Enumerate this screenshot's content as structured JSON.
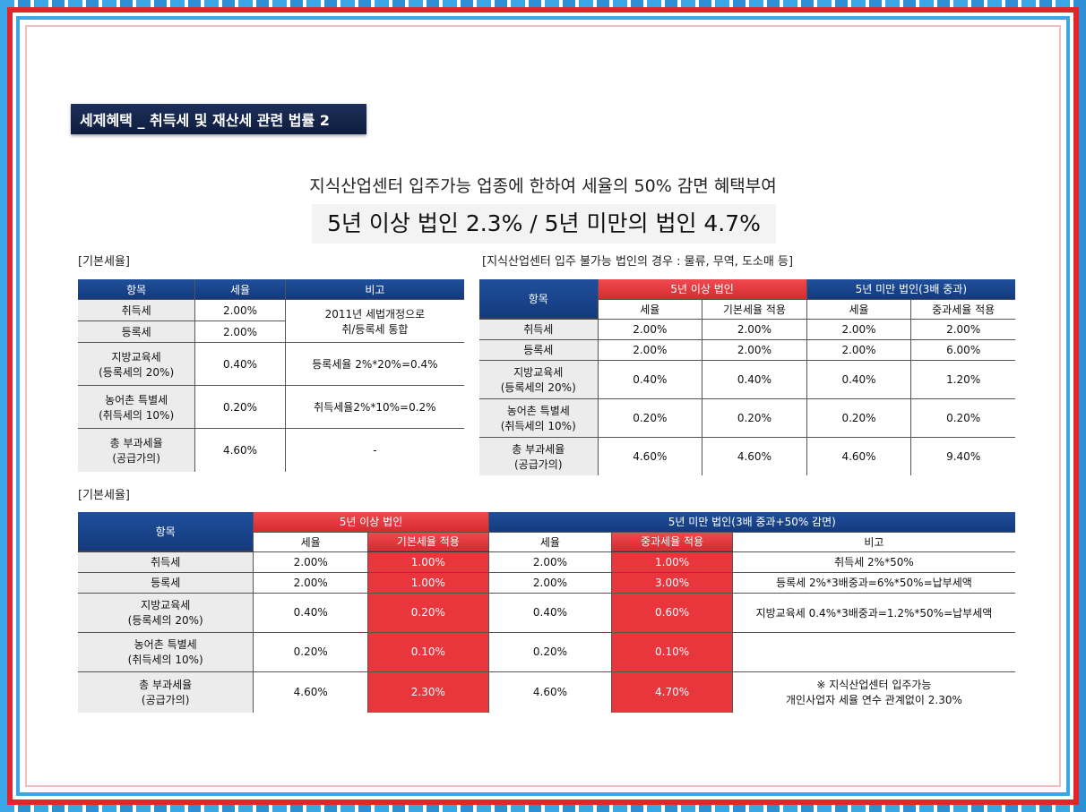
{
  "heading": "세제혜택 _ 취득세 및 재산세 관련 법률 2",
  "subtitle": "지식산업센터 입주가능 업종에 한하여 세율의 50% 감면 혜택부여",
  "headline": "5년 이상 법인 2.3% / 5년 미만의 법인 4.7%",
  "table1": {
    "label": "[기본세율]",
    "headers": [
      "항목",
      "세율",
      "비고"
    ],
    "rows": [
      {
        "item": "취득세",
        "rate": "2.00%"
      },
      {
        "item": "등록세",
        "rate": "2.00%"
      },
      {
        "item_line1": "지방교육세",
        "item_line2": "(등록세의 20%)",
        "rate": "0.40%",
        "note": "등록세율 2%*20%=0.4%"
      },
      {
        "item_line1": "농어촌 특별세",
        "item_line2": "(취득세의 10%)",
        "rate": "0.20%",
        "note": "취득세율2%*10%=0.2%"
      },
      {
        "item_line1": "총 부과세율",
        "item_line2": "(공급가의)",
        "rate": "4.60%",
        "note": "-"
      }
    ],
    "merged_note_line1": "2011년 세법개정으로",
    "merged_note_line2": "취/등록세 통합"
  },
  "table2": {
    "label": "[지식산업센터 입주 불가능 법인의 경우 : 물류, 무역, 도소매 등]",
    "item_header": "항목",
    "group1": "5년 이상 법인",
    "group2": "5년 미만 법인(3배 중과)",
    "subheaders": [
      "세율",
      "기본세율 적용",
      "세율",
      "중과세율 적용"
    ],
    "rows": [
      {
        "item_line1": "취득세",
        "item_line2": "",
        "v": [
          "2.00%",
          "2.00%",
          "2.00%",
          "2.00%"
        ]
      },
      {
        "item_line1": "등록세",
        "item_line2": "",
        "v": [
          "2.00%",
          "2.00%",
          "2.00%",
          "6.00%"
        ]
      },
      {
        "item_line1": "지방교육세",
        "item_line2": "(등록세의 20%)",
        "v": [
          "0.40%",
          "0.40%",
          "0.40%",
          "1.20%"
        ]
      },
      {
        "item_line1": "농어촌 특별세",
        "item_line2": "(취득세의 10%)",
        "v": [
          "0.20%",
          "0.20%",
          "0.20%",
          "0.20%"
        ]
      },
      {
        "item_line1": "총 부과세율",
        "item_line2": "(공급가의)",
        "v": [
          "4.60%",
          "4.60%",
          "4.60%",
          "9.40%"
        ]
      }
    ]
  },
  "table3": {
    "label": "[기본세율]",
    "item_header": "항목",
    "group1": "5년 이상 법인",
    "group2": "5년 미만 법인(3배 중과+50% 감면)",
    "subheaders": [
      "세율",
      "기본세율 적용",
      "세율",
      "중과세율 적용",
      "비고"
    ],
    "rows": [
      {
        "item_line1": "취득세",
        "item_line2": "",
        "v": [
          "2.00%",
          "1.00%",
          "2.00%",
          "1.00%"
        ],
        "note": "취득세 2%*50%"
      },
      {
        "item_line1": "등록세",
        "item_line2": "",
        "v": [
          "2.00%",
          "1.00%",
          "2.00%",
          "3.00%"
        ],
        "note": "등록세 2%*3배중과=6%*50%=납부세액"
      },
      {
        "item_line1": "지방교육세",
        "item_line2": "(등록세의 20%)",
        "v": [
          "0.40%",
          "0.20%",
          "0.40%",
          "0.60%"
        ],
        "note": "지방교육세 0.4%*3배중과=1.2%*50%=납부세액"
      },
      {
        "item_line1": "농어촌 특별세",
        "item_line2": "(취득세의 10%)",
        "v": [
          "0.20%",
          "0.10%",
          "0.20%",
          "0.10%"
        ],
        "note": ""
      },
      {
        "item_line1": "총 부과세율",
        "item_line2": "(공급가의)",
        "v": [
          "4.60%",
          "2.30%",
          "4.60%",
          "4.70%"
        ],
        "note": ""
      }
    ],
    "footnote_line1": "※ 지식산업센터 입주가능",
    "footnote_line2": "개인사업자 세율 연수 관계없이 2.30%"
  }
}
